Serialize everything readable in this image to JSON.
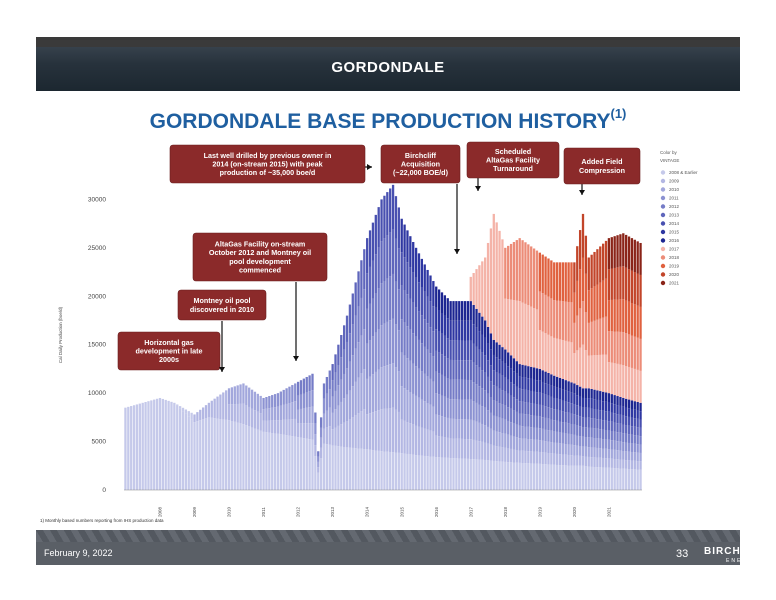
{
  "header": {
    "section_title": "GORDONDALE"
  },
  "slide": {
    "title": "GORDONDALE BASE PRODUCTION HISTORY",
    "title_sup": "(1)"
  },
  "footnote": "1)      Monthly based numbers reporting from IHS production data",
  "footer": {
    "date": "February 9, 2022",
    "page": "33",
    "logo": "BIRCHCLIFF",
    "logo_sub": "ENERGY"
  },
  "colors": {
    "title": "#1f5fa0",
    "callout_bg": "#8b2a2a",
    "callout_text": "#ffffff",
    "axis_text": "#444444"
  },
  "annotations": [
    {
      "id": "horizontal",
      "lines": [
        "Horizontal gas",
        "development in late",
        "2000s"
      ]
    },
    {
      "id": "montney",
      "lines": [
        "Montney oil pool",
        "discovered in 2010"
      ]
    },
    {
      "id": "altagas-onstream",
      "lines": [
        "AltaGas Facility on-stream",
        "October 2012 and Montney oil",
        "pool development",
        "commenced"
      ]
    },
    {
      "id": "last-well",
      "lines": [
        "Last well drilled by previous owner in",
        "2014 (on-stream 2015)  with peak",
        "production of ~35,000 boe/d"
      ]
    },
    {
      "id": "acquisition",
      "lines": [
        "Birchcliff",
        "Acquisition",
        "(~22,000 BOE/d)"
      ]
    },
    {
      "id": "turnaround",
      "lines": [
        "Scheduled",
        "AltaGas Facility",
        "Turnaround"
      ]
    },
    {
      "id": "compression",
      "lines": [
        "Added Field",
        "Compression"
      ]
    }
  ],
  "chart_data": {
    "type": "area",
    "stacked": true,
    "ylabel": "Cal Daily Production (boe/d)",
    "ylim": [
      0,
      32000
    ],
    "yticks": [
      0,
      5000,
      10000,
      15000,
      20000,
      25000,
      30000
    ],
    "ytick_labels": [
      "0",
      "5000",
      "10000",
      "15000",
      "20000",
      "25000",
      "30000"
    ],
    "year_labels": [
      "2008",
      "2009",
      "2010",
      "2011",
      "2012",
      "2013",
      "2014",
      "2015",
      "2016",
      "2017",
      "2018",
      "2019",
      "2020",
      "2021"
    ],
    "legend": {
      "title": [
        "Color by",
        "VINTAGE"
      ],
      "placement": "right",
      "entries": [
        {
          "name": "2008 & Earlier",
          "color": "#c5c9ea"
        },
        {
          "name": "2009",
          "color": "#b3b7e3"
        },
        {
          "name": "2010",
          "color": "#a2a7dc"
        },
        {
          "name": "2011",
          "color": "#8c92d2"
        },
        {
          "name": "2012",
          "color": "#757cc7"
        },
        {
          "name": "2013",
          "color": "#5f66bc"
        },
        {
          "name": "2014",
          "color": "#4850b0"
        },
        {
          "name": "2015",
          "color": "#2e37a2"
        },
        {
          "name": "2016",
          "color": "#1c2591"
        },
        {
          "name": "2017",
          "color": "#f4b3a8"
        },
        {
          "name": "2018",
          "color": "#ec8c78"
        },
        {
          "name": "2019",
          "color": "#e0613f"
        },
        {
          "name": "2020",
          "color": "#c2452a"
        },
        {
          "name": "2021",
          "color": "#8a2418"
        }
      ]
    },
    "x_start": "2007-01",
    "x_end": "2021-12",
    "keypoints": {
      "x": [
        "2007-01",
        "2008-01",
        "2008-06",
        "2009-01",
        "2009-06",
        "2010-01",
        "2010-06",
        "2011-01",
        "2011-06",
        "2012-06",
        "2012-08",
        "2012-10",
        "2013-01",
        "2013-06",
        "2014-01",
        "2014-06",
        "2014-10",
        "2015-01",
        "2015-06",
        "2016-01",
        "2016-06",
        "2017-01",
        "2017-06",
        "2017-09",
        "2018-01",
        "2018-06",
        "2019-01",
        "2019-06",
        "2020-01",
        "2020-04",
        "2020-06",
        "2021-01",
        "2021-06",
        "2021-12"
      ],
      "total": [
        8500,
        9500,
        9000,
        7800,
        9000,
        10500,
        11000,
        9500,
        10000,
        12000,
        4000,
        11000,
        13000,
        18000,
        26000,
        30000,
        31500,
        28000,
        25000,
        21000,
        19500,
        22000,
        24000,
        28500,
        25000,
        26000,
        24500,
        23500,
        23500,
        28500,
        24000,
        26000,
        26500,
        25500
      ],
      "base2016": [
        8500,
        9500,
        9000,
        7800,
        9000,
        10500,
        11000,
        9500,
        10000,
        12000,
        4000,
        11000,
        13000,
        18000,
        26000,
        30000,
        31500,
        28000,
        25000,
        21000,
        19500,
        19500,
        17500,
        15500,
        14500,
        13000,
        12500,
        11800,
        11000,
        10500,
        10500,
        10000,
        9500,
        9000
      ],
      "base2008": [
        8500,
        9500,
        9000,
        7000,
        7500,
        7200,
        6800,
        6000,
        5800,
        5200,
        1800,
        4800,
        4600,
        4400,
        4200,
        4000,
        3900,
        3800,
        3600,
        3400,
        3300,
        3200,
        3100,
        3000,
        2900,
        2800,
        2700,
        2600,
        2500,
        2500,
        2400,
        2300,
        2200,
        2100
      ]
    }
  }
}
